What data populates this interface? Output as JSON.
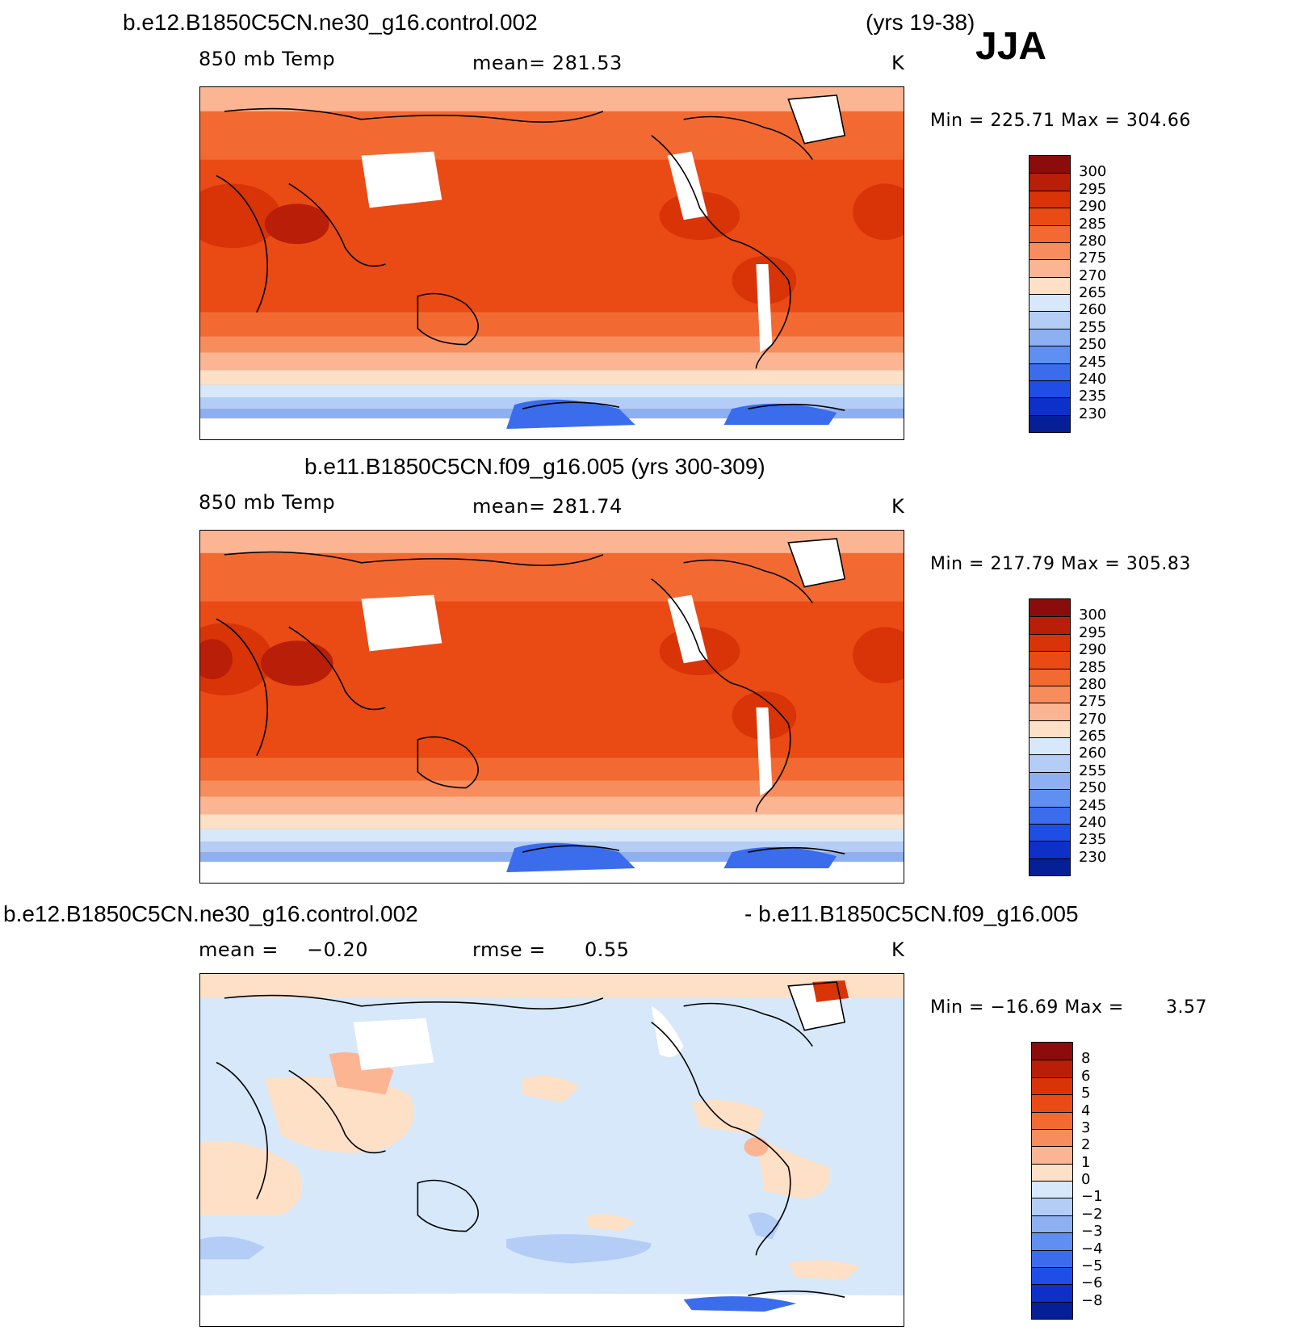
{
  "season": "JJA",
  "panels": [
    {
      "title": "b.e12.B1850C5CN.ne30_g16.control.002",
      "years": "(yrs 19-38)",
      "variable": "850 mb Temp",
      "stat": "mean=  281.53",
      "units": "K",
      "minmax": "Min  =  225.71  Max  =  304.66",
      "colorbar": {
        "labels": [
          "300",
          "295",
          "290",
          "285",
          "280",
          "275",
          "270",
          "265",
          "260",
          "255",
          "250",
          "245",
          "240",
          "235",
          "230"
        ],
        "colors": [
          "#8c0b0b",
          "#b81e08",
          "#d83408",
          "#ea4a14",
          "#f26a32",
          "#f78d5c",
          "#fbb593",
          "#fde0c6",
          "#d6e8fa",
          "#b3cdf6",
          "#8db0f2",
          "#5f8ff0",
          "#3a6cec",
          "#1f4ee6",
          "#0d30c8",
          "#061f96"
        ]
      }
    },
    {
      "title": "b.e11.B1850C5CN.f09_g16.005 (yrs 300-309)",
      "variable": "850 mb Temp",
      "stat": "mean=  281.74",
      "units": "K",
      "minmax": "Min  =  217.79  Max  =  305.83",
      "colorbar": {
        "labels": [
          "300",
          "295",
          "290",
          "285",
          "280",
          "275",
          "270",
          "265",
          "260",
          "255",
          "250",
          "245",
          "240",
          "235",
          "230"
        ],
        "colors": [
          "#8c0b0b",
          "#b81e08",
          "#d83408",
          "#ea4a14",
          "#f26a32",
          "#f78d5c",
          "#fbb593",
          "#fde0c6",
          "#d6e8fa",
          "#b3cdf6",
          "#8db0f2",
          "#5f8ff0",
          "#3a6cec",
          "#1f4ee6",
          "#0d30c8",
          "#061f96"
        ]
      }
    },
    {
      "title_left": "b.e12.B1850C5CN.ne30_g16.control.002",
      "title_right": "- b.e11.B1850C5CN.f09_g16.005",
      "mean_label": "mean  =",
      "mean_value": "−0.20",
      "rmse_label": "rmse  =",
      "rmse_value": "0.55",
      "units": "K",
      "minmax_left": "Min  =  −16.69  Max  =",
      "minmax_right": "3.57",
      "colorbar": {
        "labels": [
          "8",
          "6",
          "5",
          "4",
          "3",
          "2",
          "1",
          "0",
          "−1",
          "−2",
          "−3",
          "−4",
          "−5",
          "−6",
          "−8"
        ],
        "colors": [
          "#8c0b0b",
          "#b81e08",
          "#d83408",
          "#ea4a14",
          "#f26a32",
          "#f78d5c",
          "#fbb593",
          "#fde0c6",
          "#d6e8fa",
          "#b3cdf6",
          "#8db0f2",
          "#5f8ff0",
          "#3a6cec",
          "#1f4ee6",
          "#0d30c8",
          "#061f96"
        ]
      }
    }
  ]
}
